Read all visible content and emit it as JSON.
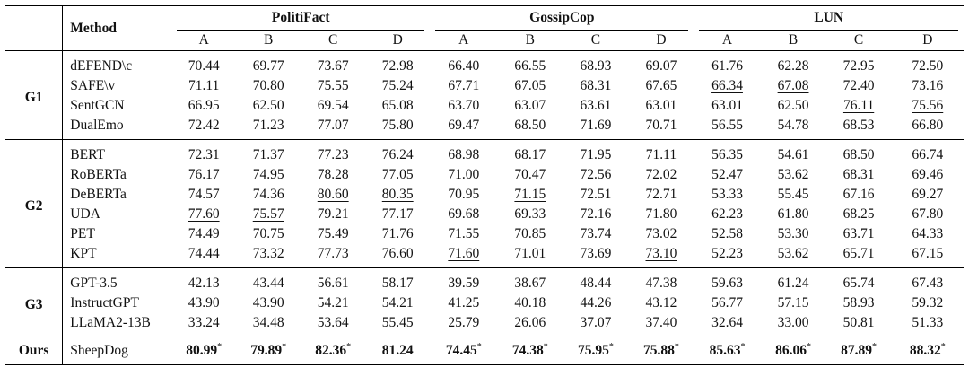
{
  "table": {
    "method_header": "Method",
    "datasets": [
      "PolitiFact",
      "GossipCop",
      "LUN"
    ],
    "sub_headers": [
      "A",
      "B",
      "C",
      "D"
    ],
    "groups": [
      {
        "label": "G1",
        "rows": [
          {
            "method": "dEFEND\\c",
            "values": [
              "70.44",
              "69.77",
              "73.67",
              "72.98",
              "66.40",
              "66.55",
              "68.93",
              "69.07",
              "61.76",
              "62.28",
              "72.95",
              "72.50"
            ],
            "underline": []
          },
          {
            "method": "SAFE\\v",
            "values": [
              "71.11",
              "70.80",
              "75.55",
              "75.24",
              "67.71",
              "67.05",
              "68.31",
              "67.65",
              "66.34",
              "67.08",
              "72.40",
              "73.16"
            ],
            "underline": [
              8,
              9
            ]
          },
          {
            "method": "SentGCN",
            "values": [
              "66.95",
              "62.50",
              "69.54",
              "65.08",
              "63.70",
              "63.07",
              "63.61",
              "63.01",
              "63.01",
              "62.50",
              "76.11",
              "75.56"
            ],
            "underline": [
              10,
              11
            ]
          },
          {
            "method": "DualEmo",
            "values": [
              "72.42",
              "71.23",
              "77.07",
              "75.80",
              "69.47",
              "68.50",
              "71.69",
              "70.71",
              "56.55",
              "54.78",
              "68.53",
              "66.80"
            ],
            "underline": []
          }
        ]
      },
      {
        "label": "G2",
        "rows": [
          {
            "method": "BERT",
            "values": [
              "72.31",
              "71.37",
              "77.23",
              "76.24",
              "68.98",
              "68.17",
              "71.95",
              "71.11",
              "56.35",
              "54.61",
              "68.50",
              "66.74"
            ],
            "underline": []
          },
          {
            "method": "RoBERTa",
            "values": [
              "76.17",
              "74.95",
              "78.28",
              "77.05",
              "71.00",
              "70.47",
              "72.56",
              "72.02",
              "52.47",
              "53.62",
              "68.31",
              "69.46"
            ],
            "underline": []
          },
          {
            "method": "DeBERTa",
            "values": [
              "74.57",
              "74.36",
              "80.60",
              "80.35",
              "70.95",
              "71.15",
              "72.51",
              "72.71",
              "53.33",
              "55.45",
              "67.16",
              "69.27"
            ],
            "underline": [
              2,
              3,
              5
            ]
          },
          {
            "method": "UDA",
            "values": [
              "77.60",
              "75.57",
              "79.21",
              "77.17",
              "69.68",
              "69.33",
              "72.16",
              "71.80",
              "62.23",
              "61.80",
              "68.25",
              "67.80"
            ],
            "underline": [
              0,
              1
            ]
          },
          {
            "method": "PET",
            "values": [
              "74.49",
              "70.75",
              "75.49",
              "71.76",
              "71.55",
              "70.85",
              "73.74",
              "73.02",
              "52.58",
              "53.30",
              "63.71",
              "64.33"
            ],
            "underline": [
              6
            ]
          },
          {
            "method": "KPT",
            "values": [
              "74.44",
              "73.32",
              "77.73",
              "76.60",
              "71.60",
              "71.01",
              "73.69",
              "73.10",
              "52.23",
              "53.62",
              "65.71",
              "67.15"
            ],
            "underline": [
              4,
              7
            ]
          }
        ]
      },
      {
        "label": "G3",
        "rows": [
          {
            "method": "GPT-3.5",
            "values": [
              "42.13",
              "43.44",
              "56.61",
              "58.17",
              "39.59",
              "38.67",
              "48.44",
              "47.38",
              "59.63",
              "61.24",
              "65.74",
              "67.43"
            ],
            "underline": []
          },
          {
            "method": "InstructGPT",
            "values": [
              "43.90",
              "43.90",
              "54.21",
              "54.21",
              "41.25",
              "40.18",
              "44.26",
              "43.12",
              "56.77",
              "57.15",
              "58.93",
              "59.32"
            ],
            "underline": []
          },
          {
            "method": "LLaMA2-13B",
            "values": [
              "33.24",
              "34.48",
              "53.64",
              "55.45",
              "25.79",
              "26.06",
              "37.07",
              "37.40",
              "32.64",
              "33.00",
              "50.81",
              "51.33"
            ],
            "underline": []
          }
        ]
      }
    ],
    "ours": {
      "label": "Ours",
      "method": "SheepDog",
      "values": [
        "80.99",
        "79.89",
        "82.36",
        "81.24",
        "74.45",
        "74.38",
        "75.95",
        "75.88",
        "85.63",
        "86.06",
        "87.89",
        "88.32"
      ],
      "star": [
        true,
        true,
        true,
        false,
        true,
        true,
        true,
        true,
        true,
        true,
        true,
        true
      ],
      "star_symbol": "*"
    }
  }
}
